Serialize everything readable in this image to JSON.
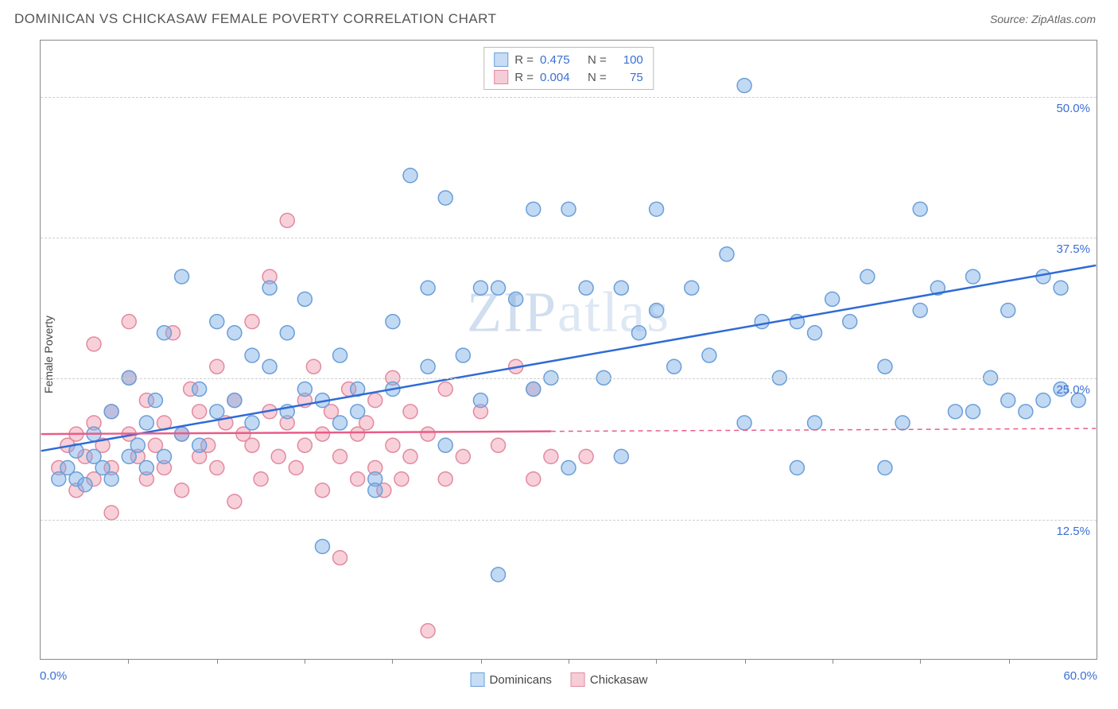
{
  "header": {
    "title": "DOMINICAN VS CHICKASAW FEMALE POVERTY CORRELATION CHART",
    "source_prefix": "Source: ",
    "source_name": "ZipAtlas.com"
  },
  "chart": {
    "type": "scatter",
    "y_label": "Female Poverty",
    "watermark_zip": "ZIP",
    "watermark_atlas": "atlas",
    "xlim": [
      0,
      60
    ],
    "ylim": [
      0,
      55
    ],
    "x_axis": {
      "min_label": "0.0%",
      "max_label": "60.0%",
      "tick_positions_pct": [
        8.3,
        16.7,
        25,
        33.3,
        41.7,
        50,
        58.3,
        66.7,
        75,
        83.3,
        91.7
      ]
    },
    "y_ticks": [
      {
        "value": 12.5,
        "label": "12.5%"
      },
      {
        "value": 25.0,
        "label": "25.0%"
      },
      {
        "value": 37.5,
        "label": "37.5%"
      },
      {
        "value": 50.0,
        "label": "50.0%"
      }
    ],
    "grid_color": "#d0d0d0",
    "background_color": "#ffffff",
    "series": [
      {
        "name": "Dominicans",
        "fill_color": "rgba(120, 170, 230, 0.45)",
        "stroke_color": "#6a9fd8",
        "line_color": "#2f6bd6",
        "swatch_fill": "#c7ddf5",
        "swatch_border": "#6a9fd8",
        "R": "0.475",
        "N": "100",
        "marker_radius": 9,
        "regression": {
          "x1": 0,
          "y1": 18.5,
          "x2": 60,
          "y2": 35,
          "solid_until_x": 60
        },
        "points": [
          [
            1,
            16
          ],
          [
            1.5,
            17
          ],
          [
            2,
            16
          ],
          [
            2,
            18.5
          ],
          [
            2.5,
            15.5
          ],
          [
            3,
            18
          ],
          [
            3,
            20
          ],
          [
            3.5,
            17
          ],
          [
            4,
            16
          ],
          [
            4,
            22
          ],
          [
            5,
            18
          ],
          [
            5,
            25
          ],
          [
            5.5,
            19
          ],
          [
            6,
            17
          ],
          [
            6,
            21
          ],
          [
            6.5,
            23
          ],
          [
            7,
            18
          ],
          [
            7,
            29
          ],
          [
            8,
            20
          ],
          [
            8,
            34
          ],
          [
            9,
            19
          ],
          [
            9,
            24
          ],
          [
            10,
            22
          ],
          [
            10,
            30
          ],
          [
            11,
            23
          ],
          [
            11,
            29
          ],
          [
            12,
            21
          ],
          [
            12,
            27
          ],
          [
            13,
            26
          ],
          [
            13,
            33
          ],
          [
            14,
            22
          ],
          [
            14,
            29
          ],
          [
            15,
            24
          ],
          [
            15,
            32
          ],
          [
            16,
            23
          ],
          [
            16,
            10
          ],
          [
            17,
            21
          ],
          [
            17,
            27
          ],
          [
            18,
            24
          ],
          [
            18,
            22
          ],
          [
            19,
            16
          ],
          [
            19,
            15
          ],
          [
            20,
            24
          ],
          [
            20,
            30
          ],
          [
            21,
            43
          ],
          [
            22,
            26
          ],
          [
            22,
            33
          ],
          [
            23,
            19
          ],
          [
            23,
            41
          ],
          [
            24,
            27
          ],
          [
            25,
            33
          ],
          [
            25,
            23
          ],
          [
            26,
            33
          ],
          [
            26,
            7.5
          ],
          [
            27,
            32
          ],
          [
            28,
            24
          ],
          [
            28,
            40
          ],
          [
            29,
            25
          ],
          [
            30,
            17
          ],
          [
            30,
            40
          ],
          [
            31,
            33
          ],
          [
            32,
            25
          ],
          [
            33,
            18
          ],
          [
            33,
            33
          ],
          [
            34,
            29
          ],
          [
            35,
            31
          ],
          [
            35,
            40
          ],
          [
            36,
            26
          ],
          [
            37,
            33
          ],
          [
            38,
            27
          ],
          [
            39,
            36
          ],
          [
            40,
            51
          ],
          [
            40,
            21
          ],
          [
            41,
            30
          ],
          [
            42,
            25
          ],
          [
            43,
            30
          ],
          [
            43,
            17
          ],
          [
            44,
            21
          ],
          [
            44,
            29
          ],
          [
            45,
            32
          ],
          [
            46,
            30
          ],
          [
            47,
            34
          ],
          [
            48,
            26
          ],
          [
            49,
            21
          ],
          [
            50,
            31
          ],
          [
            50,
            40
          ],
          [
            51,
            33
          ],
          [
            52,
            22
          ],
          [
            53,
            34
          ],
          [
            53,
            22
          ],
          [
            54,
            25
          ],
          [
            55,
            31
          ],
          [
            55,
            23
          ],
          [
            56,
            22
          ],
          [
            57,
            34
          ],
          [
            57,
            23
          ],
          [
            58,
            33
          ],
          [
            58,
            24
          ],
          [
            59,
            23
          ],
          [
            48,
            17
          ]
        ]
      },
      {
        "name": "Chickasaw",
        "fill_color": "rgba(240, 150, 170, 0.45)",
        "stroke_color": "#e28aa0",
        "line_color": "#e85d87",
        "swatch_fill": "#f5cdd7",
        "swatch_border": "#e28aa0",
        "R": "0.004",
        "N": "75",
        "marker_radius": 9,
        "regression": {
          "x1": 0,
          "y1": 20,
          "x2": 60,
          "y2": 20.5,
          "solid_until_x": 29
        },
        "points": [
          [
            1,
            17
          ],
          [
            1.5,
            19
          ],
          [
            2,
            15
          ],
          [
            2,
            20
          ],
          [
            2.5,
            18
          ],
          [
            3,
            16
          ],
          [
            3,
            21
          ],
          [
            3,
            28
          ],
          [
            3.5,
            19
          ],
          [
            4,
            17
          ],
          [
            4,
            22
          ],
          [
            4,
            13
          ],
          [
            5,
            20
          ],
          [
            5,
            25
          ],
          [
            5,
            30
          ],
          [
            5.5,
            18
          ],
          [
            6,
            16
          ],
          [
            6,
            23
          ],
          [
            6.5,
            19
          ],
          [
            7,
            21
          ],
          [
            7,
            17
          ],
          [
            7.5,
            29
          ],
          [
            8,
            20
          ],
          [
            8,
            15
          ],
          [
            8.5,
            24
          ],
          [
            9,
            18
          ],
          [
            9,
            22
          ],
          [
            9.5,
            19
          ],
          [
            10,
            26
          ],
          [
            10,
            17
          ],
          [
            10.5,
            21
          ],
          [
            11,
            23
          ],
          [
            11,
            14
          ],
          [
            11.5,
            20
          ],
          [
            12,
            19
          ],
          [
            12,
            30
          ],
          [
            12.5,
            16
          ],
          [
            13,
            22
          ],
          [
            13,
            34
          ],
          [
            13.5,
            18
          ],
          [
            14,
            21
          ],
          [
            14,
            39
          ],
          [
            14.5,
            17
          ],
          [
            15,
            23
          ],
          [
            15,
            19
          ],
          [
            15.5,
            26
          ],
          [
            16,
            20
          ],
          [
            16,
            15
          ],
          [
            16.5,
            22
          ],
          [
            17,
            18
          ],
          [
            17,
            9
          ],
          [
            17.5,
            24
          ],
          [
            18,
            20
          ],
          [
            18,
            16
          ],
          [
            18.5,
            21
          ],
          [
            19,
            17
          ],
          [
            19,
            23
          ],
          [
            19.5,
            15
          ],
          [
            20,
            19
          ],
          [
            20,
            25
          ],
          [
            20.5,
            16
          ],
          [
            21,
            18
          ],
          [
            21,
            22
          ],
          [
            22,
            2.5
          ],
          [
            22,
            20
          ],
          [
            23,
            16
          ],
          [
            23,
            24
          ],
          [
            24,
            18
          ],
          [
            25,
            22
          ],
          [
            26,
            19
          ],
          [
            27,
            26
          ],
          [
            28,
            24
          ],
          [
            28,
            16
          ],
          [
            29,
            18
          ],
          [
            31,
            18
          ]
        ]
      }
    ],
    "legend_top": {
      "r_label": "R =",
      "n_label": "N ="
    },
    "legend_bottom": [
      {
        "label": "Dominicans",
        "series_idx": 0
      },
      {
        "label": "Chickasaw",
        "series_idx": 1
      }
    ]
  }
}
